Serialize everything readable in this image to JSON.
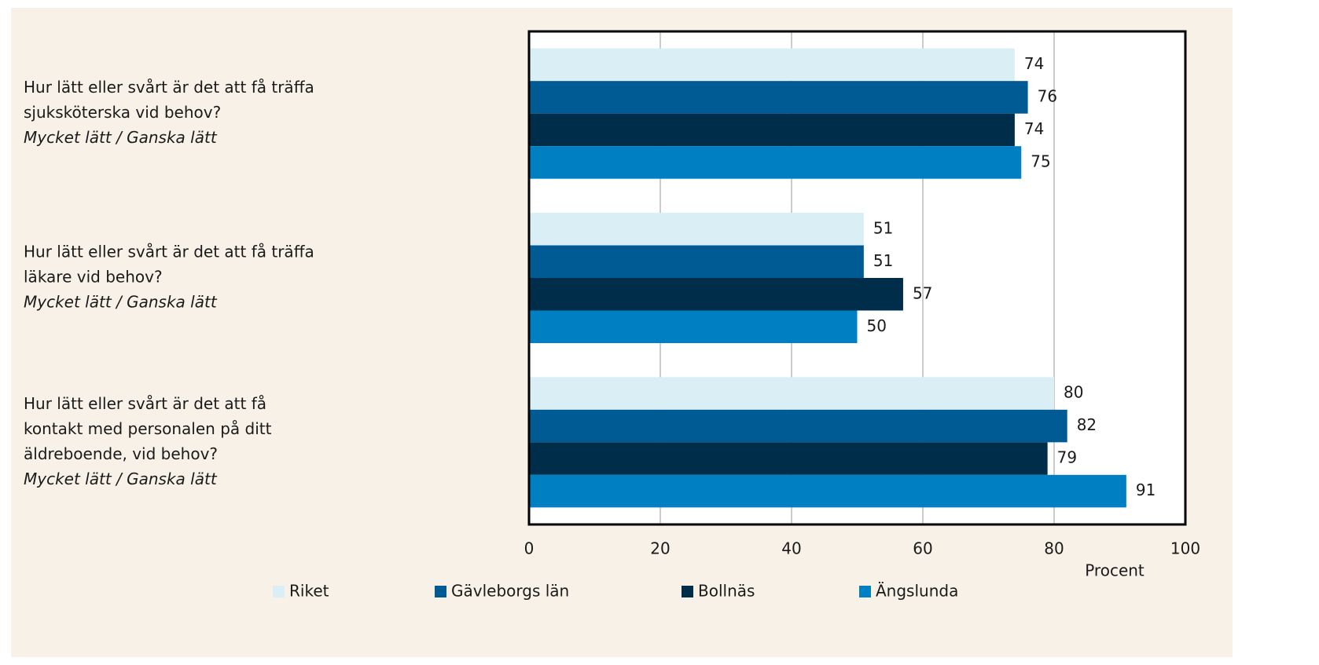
{
  "chart_data": {
    "type": "barh",
    "categories": [
      [
        "Hur lätt eller svårt är det att få träffa",
        "sjuksköterska vid behov?"
      ],
      [
        "Hur lätt eller svårt är det att få träffa",
        "läkare vid behov?"
      ],
      [
        "Hur lätt eller svårt är det att få",
        "kontakt med personalen på ditt",
        "äldreboende, vid behov?"
      ]
    ],
    "category_answers": [
      "Mycket lätt / Ganska lätt",
      "Mycket lätt / Ganska lätt",
      "Mycket lätt / Ganska lätt"
    ],
    "series": [
      {
        "name": "Riket",
        "color": "#daeef6",
        "values": [
          74,
          51,
          80
        ]
      },
      {
        "name": "Gävleborgs län",
        "color": "#005a93",
        "values": [
          76,
          51,
          82
        ]
      },
      {
        "name": "Bollnäs",
        "color": "#002d4a",
        "values": [
          74,
          57,
          79
        ]
      },
      {
        "name": "Ängslunda",
        "color": "#0080c3",
        "values": [
          75,
          50,
          91
        ]
      }
    ],
    "xlabel": "Procent",
    "xlim": [
      0,
      100
    ],
    "xticks": [
      0,
      20,
      40,
      60,
      80,
      100
    ],
    "grid": true,
    "legend": "bottom"
  }
}
